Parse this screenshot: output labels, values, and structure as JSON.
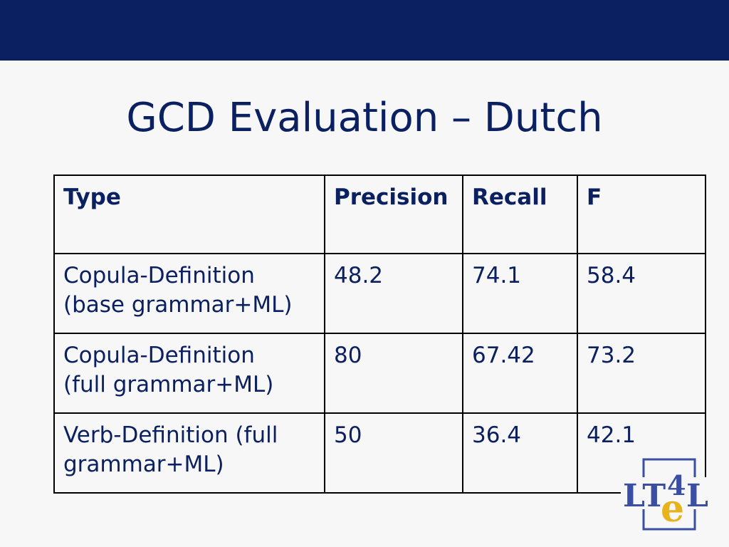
{
  "slide": {
    "title": "GCD Evaluation – Dutch"
  },
  "table": {
    "headers": [
      "Type",
      "Precision",
      "Recall",
      "F"
    ],
    "rows": [
      {
        "type_line1": "Copula-Definition",
        "type_line2": "(base grammar+ML)",
        "precision": "48.2",
        "recall": "74.1",
        "f": "58.4"
      },
      {
        "type_line1": "Copula-Definition",
        "type_line2": "(full grammar+ML)",
        "precision": "80",
        "recall": "67.42",
        "f": "73.2"
      },
      {
        "type_line1": "Verb-Definition (full",
        "type_line2": "grammar+ML)",
        "precision": "50",
        "recall": "36.4",
        "f": "42.1"
      }
    ]
  },
  "logo": {
    "text_lt": "LT",
    "text_4": "4",
    "text_e": "e",
    "text_l": "L",
    "colors": {
      "frame": "#3a4fa3",
      "text": "#3a4fa3",
      "accent": "#e8b21a"
    }
  },
  "theme": {
    "bar": "#0b2060",
    "background": "#f7f7f7",
    "text": "#0b2060"
  }
}
